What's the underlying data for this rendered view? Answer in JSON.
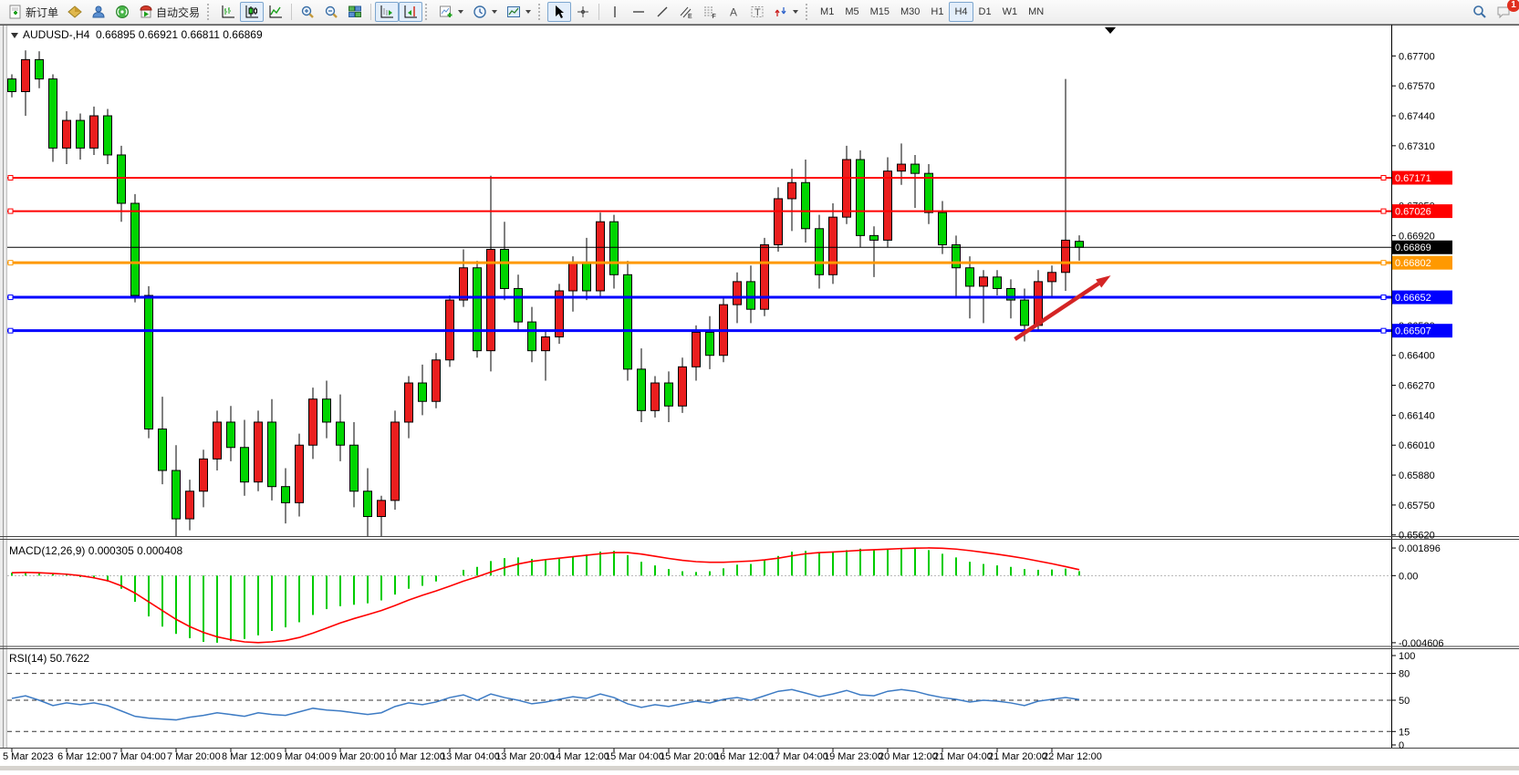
{
  "toolbar": {
    "new_order_label": "新订单",
    "autotrading_label": "自动交易",
    "timeframes": [
      "M1",
      "M5",
      "M15",
      "M30",
      "H1",
      "H4",
      "D1",
      "W1",
      "MN"
    ],
    "active_timeframe": "H4",
    "notification_badge": "1",
    "draw_glyphs": {
      "text": "A",
      "textbox": "T",
      "channel": "E",
      "fibo": "F"
    }
  },
  "chart": {
    "header": {
      "symbol_period": "AUDUSD-,H4",
      "ohlc": "0.66895 0.66921 0.66811 0.66869"
    },
    "macd_label": "MACD(12,26,9) 0.000305 0.000408",
    "rsi_label": "RSI(14) 50.7622"
  },
  "chart_data": {
    "type": "candlestick",
    "symbol": "AUDUSD-",
    "timeframe": "H4",
    "ohlc_display": {
      "open": "0.66895",
      "high": "0.66921",
      "low": "0.66811",
      "close": "0.66869"
    },
    "up_color": "#ea1e1e",
    "down_color": "#00d500",
    "price_range": [
      0.65615,
      0.67832
    ],
    "price_ticks": [
      "0.67700",
      "0.67570",
      "0.67440",
      "0.67310",
      "0.67180",
      "0.67050",
      "0.66920",
      "0.66790",
      "0.66660",
      "0.66530",
      "0.66400",
      "0.66270",
      "0.66140",
      "0.66010",
      "0.65880",
      "0.65750",
      "0.65620"
    ],
    "candles": [
      [
        0.676,
        0.6762,
        0.6752,
        0.67545
      ],
      [
        0.67545,
        0.67724,
        0.6744,
        0.67684
      ],
      [
        0.67684,
        0.6772,
        0.6756,
        0.676
      ],
      [
        0.676,
        0.6762,
        0.6724,
        0.673
      ],
      [
        0.673,
        0.6746,
        0.6723,
        0.6742
      ],
      [
        0.6742,
        0.6745,
        0.6725,
        0.673
      ],
      [
        0.673,
        0.6748,
        0.6727,
        0.6744
      ],
      [
        0.6744,
        0.6747,
        0.6723,
        0.6727
      ],
      [
        0.6727,
        0.6731,
        0.6698,
        0.6706
      ],
      [
        0.6706,
        0.671,
        0.6663,
        0.6666
      ],
      [
        0.6666,
        0.667,
        0.6604,
        0.6608
      ],
      [
        0.6608,
        0.6622,
        0.6584,
        0.659
      ],
      [
        0.659,
        0.6601,
        0.656,
        0.6569
      ],
      [
        0.6569,
        0.6586,
        0.6564,
        0.6581
      ],
      [
        0.6581,
        0.6599,
        0.6574,
        0.6595
      ],
      [
        0.6595,
        0.6616,
        0.659,
        0.6611
      ],
      [
        0.6611,
        0.6618,
        0.6594,
        0.66
      ],
      [
        0.66,
        0.6612,
        0.6579,
        0.6585
      ],
      [
        0.6585,
        0.6616,
        0.6581,
        0.6611
      ],
      [
        0.6611,
        0.6621,
        0.6577,
        0.6583
      ],
      [
        0.6583,
        0.6591,
        0.6567,
        0.6576
      ],
      [
        0.6576,
        0.6606,
        0.657,
        0.6601
      ],
      [
        0.6601,
        0.6626,
        0.6595,
        0.6621
      ],
      [
        0.6621,
        0.6629,
        0.6604,
        0.6611
      ],
      [
        0.6611,
        0.6623,
        0.6594,
        0.6601
      ],
      [
        0.6601,
        0.6611,
        0.6574,
        0.6581
      ],
      [
        0.6581,
        0.6591,
        0.6559,
        0.657
      ],
      [
        0.657,
        0.6579,
        0.6555,
        0.6577
      ],
      [
        0.6577,
        0.6616,
        0.6573,
        0.6611
      ],
      [
        0.6611,
        0.6631,
        0.6604,
        0.6628
      ],
      [
        0.6628,
        0.6636,
        0.6614,
        0.662
      ],
      [
        0.662,
        0.6641,
        0.6617,
        0.6638
      ],
      [
        0.6638,
        0.6666,
        0.6635,
        0.6664
      ],
      [
        0.6664,
        0.6686,
        0.6661,
        0.6678
      ],
      [
        0.6678,
        0.6681,
        0.6639,
        0.6642
      ],
      [
        0.6642,
        0.6718,
        0.6633,
        0.6686
      ],
      [
        0.6686,
        0.6698,
        0.6664,
        0.6669
      ],
      [
        0.6669,
        0.6675,
        0.6651,
        0.66545
      ],
      [
        0.66545,
        0.6661,
        0.6637,
        0.6642
      ],
      [
        0.6642,
        0.6651,
        0.6629,
        0.6648
      ],
      [
        0.6648,
        0.6671,
        0.6645,
        0.6668
      ],
      [
        0.6668,
        0.6683,
        0.6659,
        0.668
      ],
      [
        0.668,
        0.6691,
        0.6664,
        0.6668
      ],
      [
        0.6668,
        0.6702,
        0.6665,
        0.6698
      ],
      [
        0.6698,
        0.6701,
        0.6669,
        0.6675
      ],
      [
        0.6675,
        0.6681,
        0.6629,
        0.6634
      ],
      [
        0.6634,
        0.6643,
        0.6611,
        0.6616
      ],
      [
        0.6616,
        0.6631,
        0.6613,
        0.6628
      ],
      [
        0.6628,
        0.6633,
        0.6611,
        0.6618
      ],
      [
        0.6618,
        0.6639,
        0.6615,
        0.6635
      ],
      [
        0.6635,
        0.6653,
        0.6629,
        0.665
      ],
      [
        0.665,
        0.6657,
        0.6634,
        0.664
      ],
      [
        0.664,
        0.6665,
        0.6637,
        0.6662
      ],
      [
        0.6662,
        0.6676,
        0.6654,
        0.6672
      ],
      [
        0.6672,
        0.6679,
        0.6654,
        0.666
      ],
      [
        0.666,
        0.6691,
        0.6657,
        0.6688
      ],
      [
        0.6688,
        0.6713,
        0.6685,
        0.6708
      ],
      [
        0.6708,
        0.6721,
        0.6694,
        0.6715
      ],
      [
        0.6715,
        0.6725,
        0.6689,
        0.6695
      ],
      [
        0.6695,
        0.6701,
        0.6669,
        0.6675
      ],
      [
        0.6675,
        0.6706,
        0.6671,
        0.67
      ],
      [
        0.67,
        0.6731,
        0.6697,
        0.6725
      ],
      [
        0.6725,
        0.6729,
        0.6687,
        0.6692
      ],
      [
        0.6692,
        0.6696,
        0.6674,
        0.669
      ],
      [
        0.669,
        0.6726,
        0.6687,
        0.672
      ],
      [
        0.672,
        0.6732,
        0.6714,
        0.6723
      ],
      [
        0.6723,
        0.6727,
        0.6704,
        0.6719
      ],
      [
        0.6719,
        0.6723,
        0.6697,
        0.6702
      ],
      [
        0.6702,
        0.6707,
        0.6684,
        0.6688
      ],
      [
        0.6688,
        0.6692,
        0.6665,
        0.6678
      ],
      [
        0.6678,
        0.6683,
        0.6656,
        0.667
      ],
      [
        0.667,
        0.6677,
        0.6654,
        0.6674
      ],
      [
        0.6674,
        0.6677,
        0.6666,
        0.6669
      ],
      [
        0.6669,
        0.6673,
        0.6656,
        0.6664
      ],
      [
        0.6664,
        0.6669,
        0.6646,
        0.6653
      ],
      [
        0.6653,
        0.6677,
        0.6651,
        0.6672
      ],
      [
        0.6672,
        0.6679,
        0.6665,
        0.6676
      ],
      [
        0.6676,
        0.676,
        0.6668,
        0.669
      ],
      [
        0.66895,
        0.66921,
        0.66811,
        0.66869
      ]
    ],
    "hlines": [
      {
        "label": "0.67171",
        "price": 0.67171,
        "color": "#ff0000",
        "width": 2,
        "handles": true
      },
      {
        "label": "0.67026",
        "price": 0.67026,
        "color": "#ff0000",
        "width": 2,
        "handles": true
      },
      {
        "label": "0.66869",
        "price": 0.66869,
        "color": "#000000",
        "width": 1,
        "handles": false,
        "role": "current-price"
      },
      {
        "label": "0.66802",
        "price": 0.66802,
        "color": "#ff9900",
        "width": 3,
        "handles": true
      },
      {
        "label": "0.66652",
        "price": 0.66652,
        "color": "#0000ff",
        "width": 3,
        "handles": true
      },
      {
        "label": "0.66507",
        "price": 0.66507,
        "color": "#0000ff",
        "width": 3,
        "handles": true
      }
    ],
    "macd": {
      "params": "12,26,9",
      "value": "0.000305",
      "signal_value": "0.000408",
      "hist_color": "#00cc00",
      "signal_color": "#ff0000",
      "range": [
        -0.0048,
        0.0024
      ],
      "axis": [
        {
          "label": "0.001896",
          "value": 0.001896
        },
        {
          "label": "0.00",
          "value": 0
        },
        {
          "label": "-0.004606",
          "value": -0.004606
        }
      ],
      "hist": [
        0.0002,
        0.0002,
        0.00015,
        0.0001,
        5e-05,
        -0.0001,
        -0.0002,
        -0.0004,
        -0.0009,
        -0.0018,
        -0.0028,
        -0.0035,
        -0.004,
        -0.0043,
        -0.00455,
        -0.004606,
        -0.0045,
        -0.00435,
        -0.0041,
        -0.0038,
        -0.00355,
        -0.0032,
        -0.0027,
        -0.0023,
        -0.0021,
        -0.002,
        -0.0019,
        -0.0017,
        -0.0013,
        -0.0009,
        -0.0007,
        -0.0004,
        0,
        0.0004,
        0.0006,
        0.001,
        0.0012,
        0.00125,
        0.00115,
        0.00105,
        0.00115,
        0.0013,
        0.00145,
        0.00165,
        0.0017,
        0.0014,
        0.00095,
        0.0007,
        0.00045,
        0.0003,
        0.00025,
        0.0003,
        0.0005,
        0.00075,
        0.0008,
        0.00105,
        0.00135,
        0.00165,
        0.0017,
        0.00155,
        0.0016,
        0.00175,
        0.00185,
        0.00175,
        0.0018,
        0.001896,
        0.00185,
        0.00175,
        0.0015,
        0.00125,
        0.00095,
        0.0008,
        0.0007,
        0.0006,
        0.00045,
        0.0004,
        0.00042,
        0.00048,
        0.000305
      ],
      "signal": [
        0.0002,
        0.00022,
        0.0002,
        0.00015,
        0.0001,
        0,
        -0.00015,
        -0.00035,
        -0.0007,
        -0.0012,
        -0.0018,
        -0.0024,
        -0.003,
        -0.0035,
        -0.0039,
        -0.0042,
        -0.0044,
        -0.00455,
        -0.0046,
        -0.00455,
        -0.00445,
        -0.00425,
        -0.00395,
        -0.0036,
        -0.00325,
        -0.00295,
        -0.00268,
        -0.0024,
        -0.00205,
        -0.00168,
        -0.00135,
        -0.00105,
        -0.00072,
        -0.00038,
        -8e-05,
        0.00025,
        0.00055,
        0.0008,
        0.00098,
        0.0011,
        0.0012,
        0.0013,
        0.0014,
        0.0015,
        0.00158,
        0.00158,
        0.00148,
        0.00133,
        0.00118,
        0.00105,
        0.00096,
        0.00092,
        0.00092,
        0.00096,
        0.001,
        0.00108,
        0.0012,
        0.00136,
        0.0015,
        0.00158,
        0.00162,
        0.00168,
        0.00174,
        0.00178,
        0.00182,
        0.00186,
        0.00189,
        0.0019,
        0.00188,
        0.00182,
        0.00172,
        0.0016,
        0.00147,
        0.00133,
        0.00118,
        0.001,
        0.00082,
        0.00062,
        0.000408
      ]
    },
    "rsi": {
      "params": "14",
      "value": "50.7622",
      "line_color": "#3d7bc4",
      "axis": [
        {
          "label": "100",
          "value": 100
        },
        {
          "label": "80",
          "value": 80
        },
        {
          "label": "50",
          "value": 50
        },
        {
          "label": "15",
          "value": 15
        },
        {
          "label": "0",
          "value": 0
        }
      ],
      "levels": [
        80,
        50,
        15
      ],
      "values": [
        52,
        55,
        50,
        44,
        47,
        45,
        47,
        44,
        38,
        32,
        30,
        29,
        28,
        31,
        33,
        36,
        34,
        32,
        36,
        34,
        33,
        37,
        41,
        39,
        38,
        36,
        34,
        36,
        43,
        47,
        45,
        48,
        53,
        56,
        50,
        57,
        53,
        50,
        46,
        48,
        51,
        54,
        52,
        57,
        53,
        46,
        42,
        45,
        43,
        46,
        49,
        47,
        51,
        53,
        50,
        55,
        60,
        62,
        58,
        54,
        57,
        61,
        56,
        55,
        60,
        62,
        60,
        56,
        53,
        51,
        48,
        50,
        49,
        47,
        44,
        49,
        51,
        53,
        50.7622
      ]
    },
    "time_labels": [
      "5 Mar 2023",
      "6 Mar 12:00",
      "7 Mar 04:00",
      "7 Mar 20:00",
      "8 Mar 12:00",
      "9 Mar 04:00",
      "9 Mar 20:00",
      "10 Mar 12:00",
      "13 Mar 04:00",
      "13 Mar 20:00",
      "14 Mar 12:00",
      "15 Mar 04:00",
      "15 Mar 20:00",
      "16 Mar 12:00",
      "17 Mar 04:00",
      "19 Mar 23:00",
      "20 Mar 12:00",
      "21 Mar 04:00",
      "21 Mar 20:00",
      "22 Mar 12:00"
    ],
    "arrow": {
      "color": "#d42424",
      "from": {
        "bar": 74.3,
        "price": 0.6647
      },
      "to": {
        "bar": 81.3,
        "price": 0.66747
      }
    }
  }
}
